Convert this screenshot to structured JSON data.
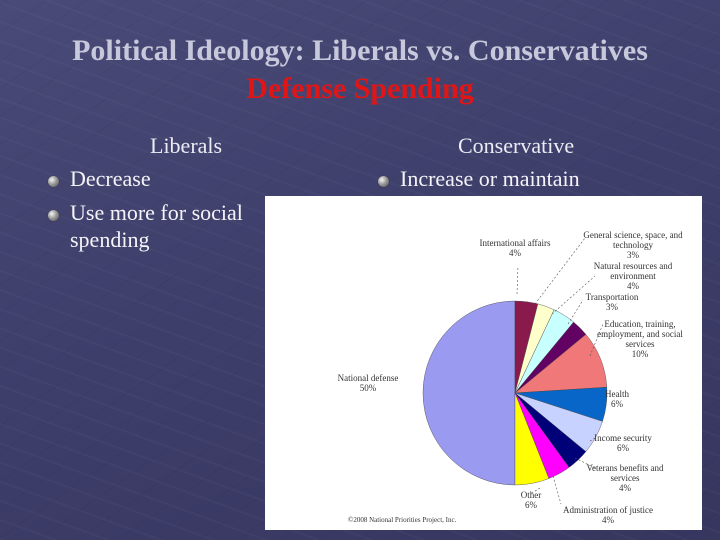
{
  "slide": {
    "title": "Political Ideology: Liberals vs. Conservatives",
    "subtitle": "Defense Spending"
  },
  "left_column": {
    "heading": "Liberals",
    "bullets": [
      "Decrease",
      "Use more for social spending"
    ],
    "bullet_lines": [
      "Use more for social",
      "spending"
    ]
  },
  "right_column": {
    "heading": "Conservative",
    "bullets": [
      "Increase or maintain"
    ]
  },
  "colors": {
    "title": "#c8c8dc",
    "subtitle": "#e01616",
    "background": "#40406c"
  },
  "chart_data": {
    "type": "pie",
    "slices": [
      {
        "label": "National defense",
        "value": 50,
        "display": "50%",
        "color": "#9a9af0"
      },
      {
        "label": "International affairs",
        "value": 4,
        "display": "4%",
        "color": "#8b1a4c"
      },
      {
        "label": "General science, space, and technology",
        "value": 3,
        "display": "3%",
        "color": "#ffffcc"
      },
      {
        "label": "Natural resources and environment",
        "value": 4,
        "display": "4%",
        "color": "#c8ffff"
      },
      {
        "label": "Transportation",
        "value": 3,
        "display": "3%",
        "color": "#620262"
      },
      {
        "label": "Education, training, employment, and social services",
        "value": 10,
        "display": "10%",
        "color": "#f07878"
      },
      {
        "label": "Health",
        "value": 6,
        "display": "6%",
        "color": "#0866c8"
      },
      {
        "label": "Income security",
        "value": 6,
        "display": "6%",
        "color": "#c8d2ff"
      },
      {
        "label": "Veterans benefits and services",
        "value": 4,
        "display": "4%",
        "color": "#000078"
      },
      {
        "label": "Administration of justice",
        "value": 4,
        "display": "4%",
        "color": "#ff00ff"
      },
      {
        "label": "Other",
        "value": 6,
        "display": "6%",
        "color": "#ffff00"
      }
    ],
    "label_lines": {
      "national_defense": [
        "National defense",
        "50%"
      ],
      "international_affairs": [
        "International affairs",
        "4%"
      ],
      "science": [
        "General science, space, and",
        "technology",
        "3%"
      ],
      "natural_resources": [
        "Natural resources and",
        "environment",
        "4%"
      ],
      "transportation": [
        "Transportation",
        "3%"
      ],
      "education": [
        "Education, training,",
        "employment, and social",
        "services",
        "10%"
      ],
      "health": [
        "Health",
        "6%"
      ],
      "income_security": [
        "Income security",
        "6%"
      ],
      "veterans": [
        "Veterans benefits and",
        "services",
        "4%"
      ],
      "justice": [
        "Administration of justice",
        "4%"
      ],
      "other": [
        "Other",
        "6%"
      ]
    },
    "source": "©2008 National Priorities Project, Inc."
  }
}
